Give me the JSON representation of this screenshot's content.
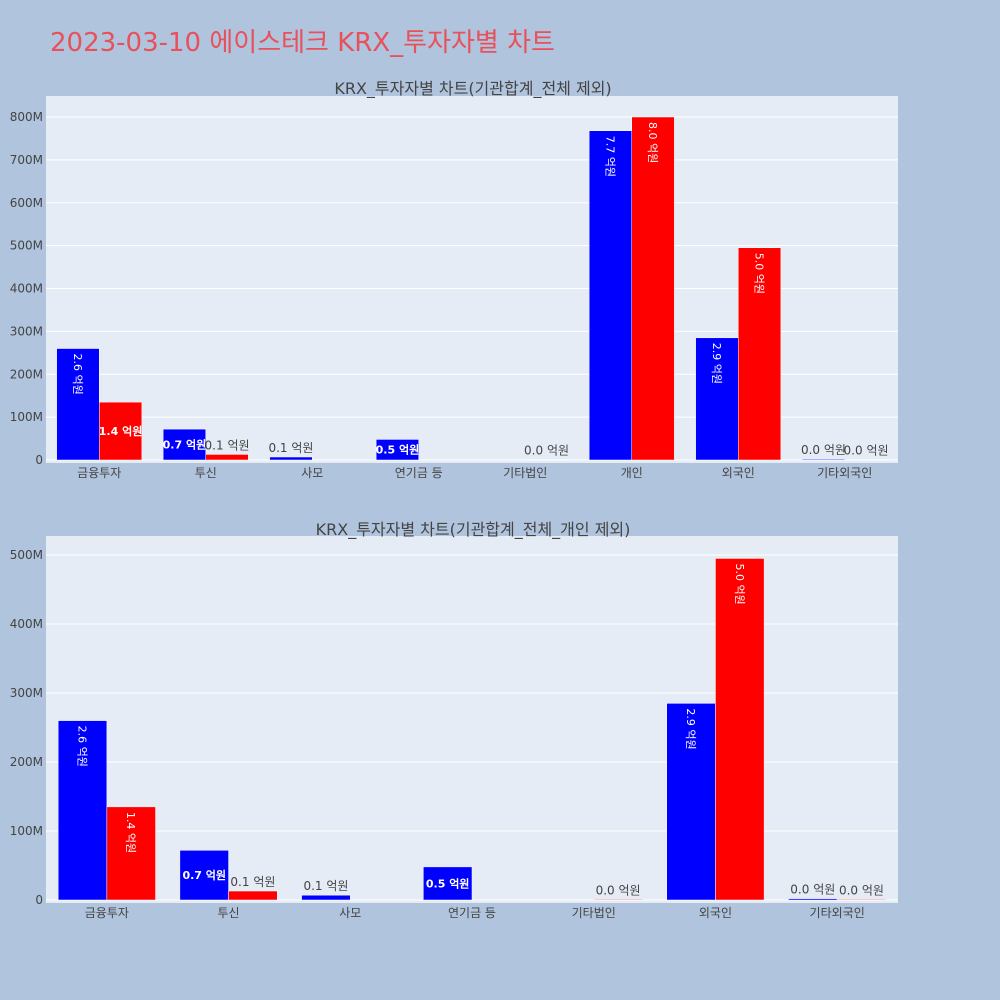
{
  "page_title": "2023-03-10 에이스테크 KRX_투자자별 차트",
  "colors": {
    "buy": "#0000ff",
    "sell": "#ff0000",
    "title": "#e8505b",
    "page_bg": "#b0c4de",
    "plot_bg": "#e5ecf6"
  },
  "chart_data": [
    {
      "type": "bar",
      "title": "KRX_투자자별 차트(기관합계_전체 제외)",
      "categories": [
        "금융투자",
        "투신",
        "사모",
        "연기금 등",
        "기타법인",
        "개인",
        "외국인",
        "기타외국인"
      ],
      "ylim": [
        0,
        850000000
      ],
      "yticks": [
        "0",
        "100M",
        "200M",
        "300M",
        "400M",
        "500M",
        "600M",
        "700M",
        "800M"
      ],
      "series": [
        {
          "values": [
            260000000,
            72000000,
            7000000,
            48000000,
            0,
            768000000,
            285000000,
            2000000
          ],
          "labels": [
            "2.6 억원",
            "0.7 억원",
            "0.1 억원",
            "0.5 억원",
            "",
            "7.7 억원",
            "2.9 억원",
            "0.0 억원"
          ]
        },
        {
          "values": [
            135000000,
            13000000,
            0,
            0,
            1000000,
            800000000,
            495000000,
            1000000
          ],
          "labels": [
            "1.4 억원",
            "0.1 억원",
            "",
            "",
            "0.0 억원",
            "8.0 억원",
            "5.0 억원",
            "0.0 억원"
          ]
        }
      ]
    },
    {
      "type": "bar",
      "title": "KRX_투자자별 차트(기관합계_전체_개인 제외)",
      "categories": [
        "금융투자",
        "투신",
        "사모",
        "연기금 등",
        "기타법인",
        "외국인",
        "기타외국인"
      ],
      "ylim": [
        0,
        525000000
      ],
      "yticks": [
        "0",
        "100M",
        "200M",
        "300M",
        "400M",
        "500M"
      ],
      "series": [
        {
          "values": [
            260000000,
            72000000,
            7000000,
            48000000,
            0,
            285000000,
            2000000
          ],
          "labels": [
            "2.6 억원",
            "0.7 억원",
            "0.1 억원",
            "0.5 억원",
            "",
            "2.9 억원",
            "0.0 억원"
          ]
        },
        {
          "values": [
            135000000,
            13000000,
            0,
            0,
            1000000,
            495000000,
            1000000
          ],
          "labels": [
            "1.4 억원",
            "0.1 억원",
            "",
            "",
            "0.0 억원",
            "5.0 억원",
            "0.0 억원"
          ]
        }
      ]
    }
  ]
}
